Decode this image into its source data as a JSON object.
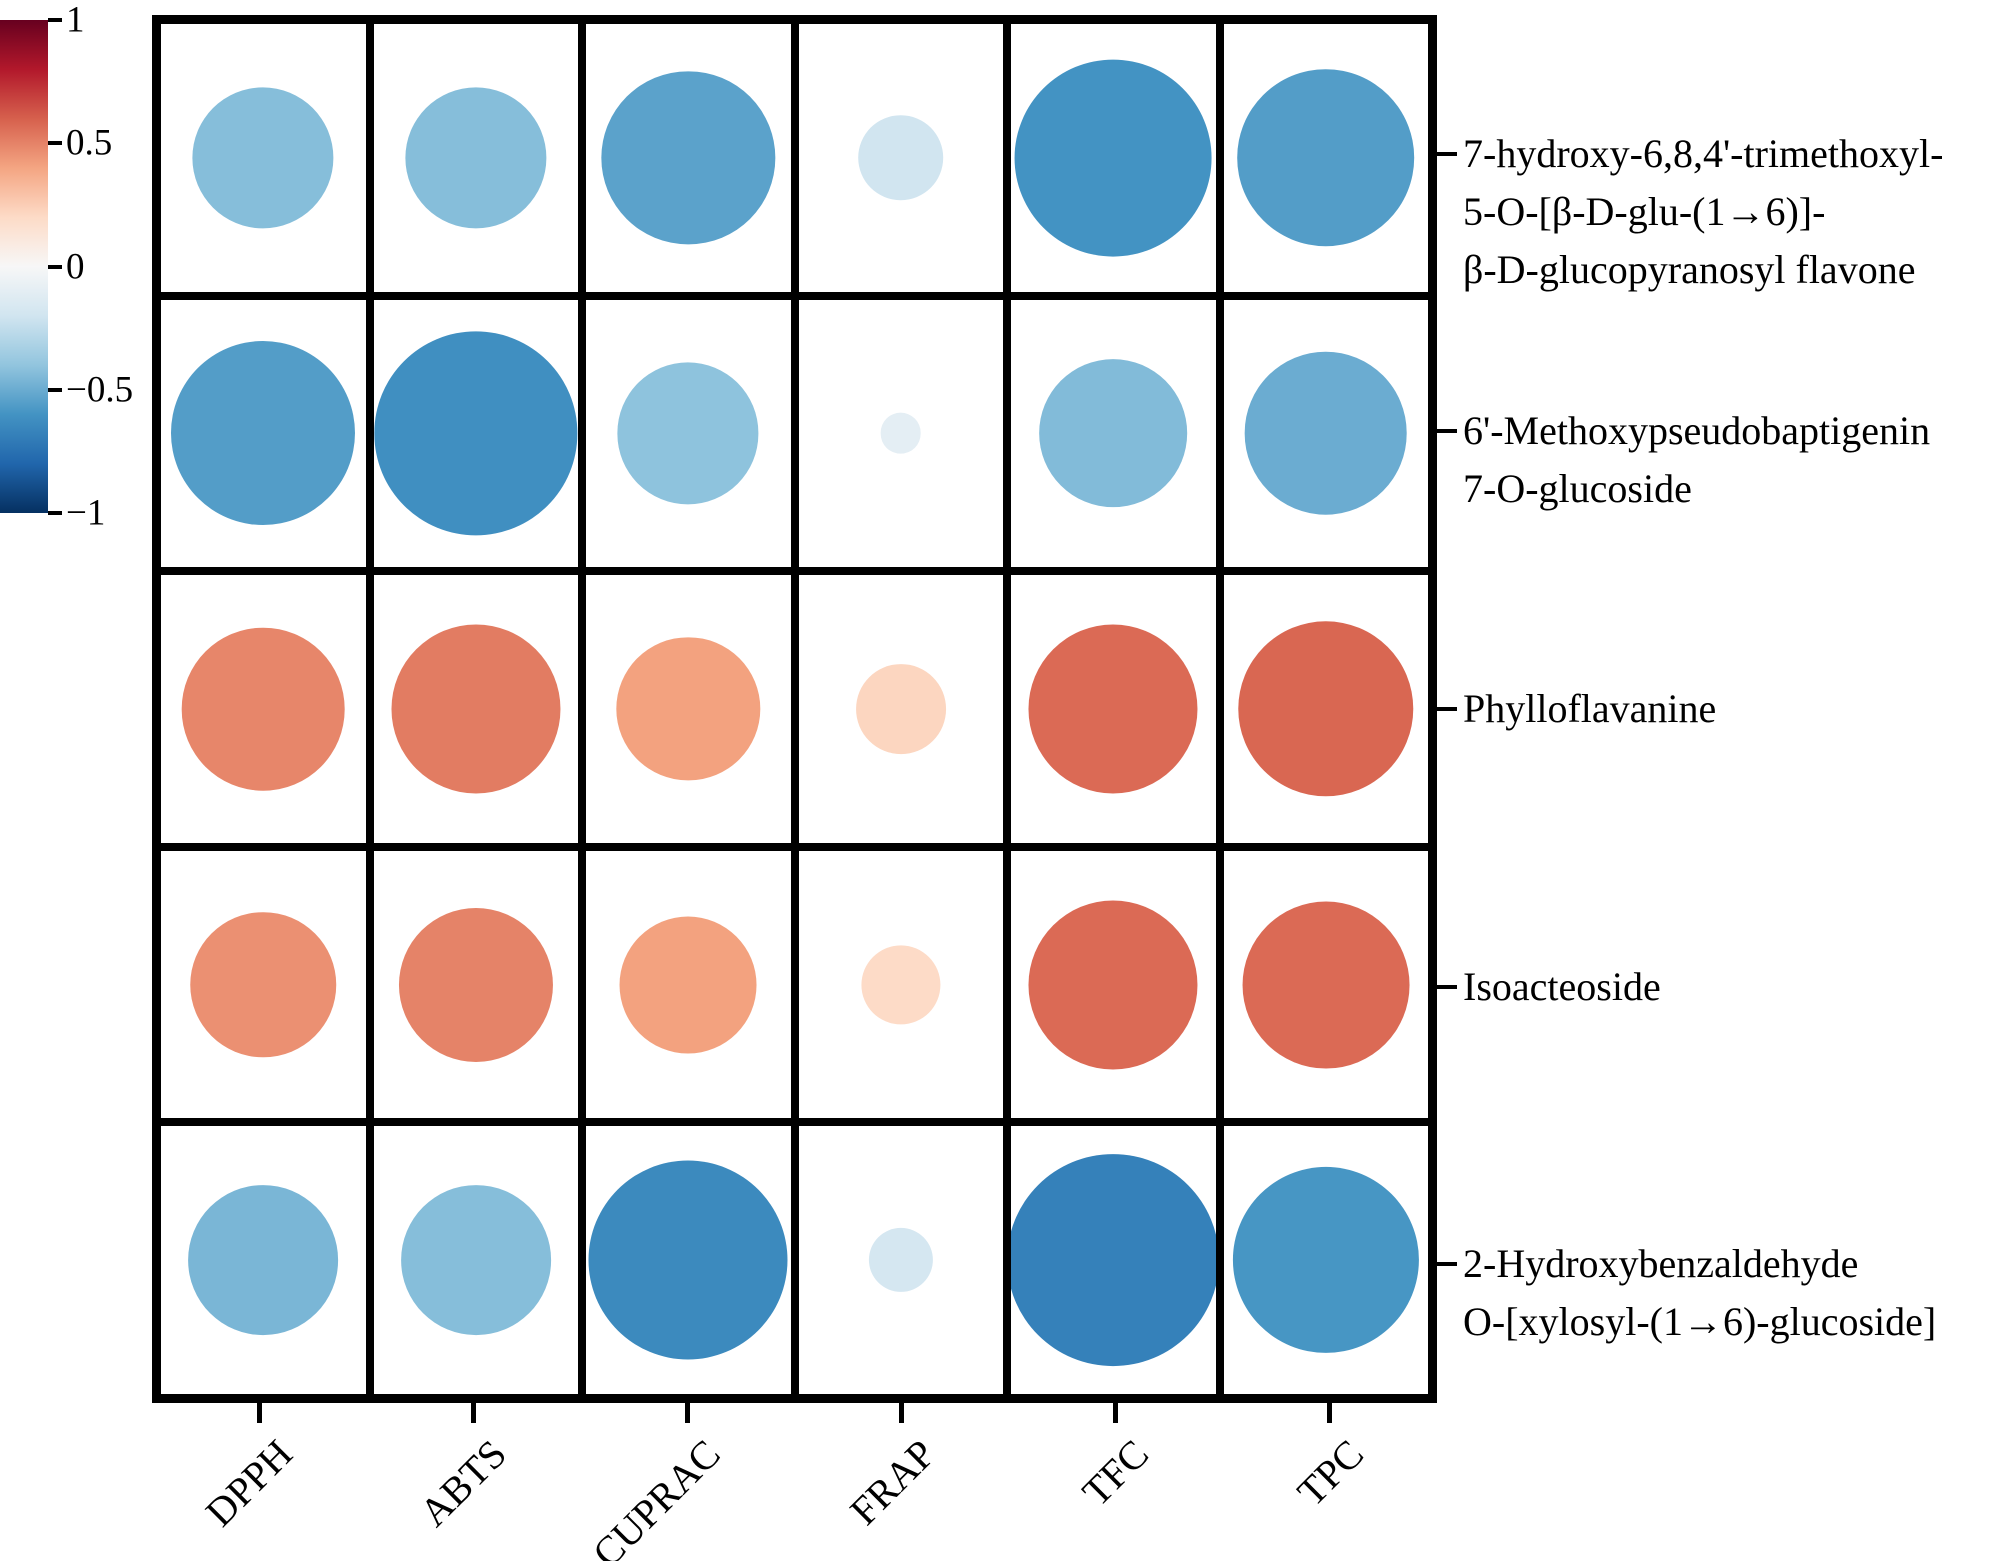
{
  "chart_data": {
    "type": "heatmap",
    "variant": "correlation-bubble-matrix",
    "value_range": [
      -1,
      1
    ],
    "legend_position": "left",
    "grid_on": true,
    "columns": [
      "DPPH",
      "ABTS",
      "CUPRAC",
      "FRAP",
      "TFC",
      "TPC"
    ],
    "rows": [
      {
        "label_lines": [
          "7-hydroxy-6,8,4'-trimethoxyl-",
          "5-O-[β-D-glu-(1→6)]-",
          "β-D-glucopyranosyl flavone"
        ]
      },
      {
        "label_lines": [
          "6'-Methoxypseudobaptigenin",
          "7-O-glucoside"
        ]
      },
      {
        "label_lines": [
          "Phylloflavanine"
        ]
      },
      {
        "label_lines": [
          "Isoacteoside"
        ]
      },
      {
        "label_lines": [
          "2-Hydroxybenzaldehyde",
          "O-[xylosyl-(1→6)-glucoside]"
        ]
      }
    ],
    "correlation_values": [
      [
        -0.43,
        -0.43,
        -0.54,
        -0.2,
        -0.6,
        -0.56
      ],
      [
        -0.56,
        -0.62,
        -0.41,
        -0.1,
        -0.44,
        -0.5
      ],
      [
        0.49,
        0.52,
        0.41,
        0.22,
        0.57,
        0.58
      ],
      [
        0.46,
        0.5,
        0.41,
        0.2,
        0.57,
        0.57
      ],
      [
        -0.46,
        -0.43,
        -0.64,
        -0.18,
        -0.68,
        -0.59
      ]
    ],
    "bubble_diameter_fraction": [
      [
        0.66,
        0.66,
        0.81,
        0.4,
        0.92,
        0.83
      ],
      [
        0.86,
        0.95,
        0.66,
        0.19,
        0.69,
        0.76
      ],
      [
        0.76,
        0.79,
        0.67,
        0.42,
        0.79,
        0.82
      ],
      [
        0.68,
        0.72,
        0.64,
        0.37,
        0.79,
        0.78
      ],
      [
        0.7,
        0.7,
        0.93,
        0.3,
        0.99,
        0.87
      ]
    ],
    "colorbar": {
      "tick_labels": [
        "1",
        "0.5",
        "0",
        "−0.5",
        "−1"
      ],
      "tick_values": [
        1,
        0.5,
        0,
        -0.5,
        -1
      ],
      "colormap_anchors": [
        {
          "value": 1.0,
          "color": "#67001f"
        },
        {
          "value": 0.8,
          "color": "#b2182b"
        },
        {
          "value": 0.6,
          "color": "#d6604d"
        },
        {
          "value": 0.4,
          "color": "#f4a582"
        },
        {
          "value": 0.2,
          "color": "#fddbc7"
        },
        {
          "value": 0.0,
          "color": "#f7f7f7"
        },
        {
          "value": -0.2,
          "color": "#d1e5f0"
        },
        {
          "value": -0.4,
          "color": "#92c5de"
        },
        {
          "value": -0.6,
          "color": "#4393c3"
        },
        {
          "value": -0.8,
          "color": "#2166ac"
        },
        {
          "value": -1.0,
          "color": "#053061"
        }
      ]
    },
    "grid_line_color": "#000000",
    "background_color": "#ffffff"
  }
}
